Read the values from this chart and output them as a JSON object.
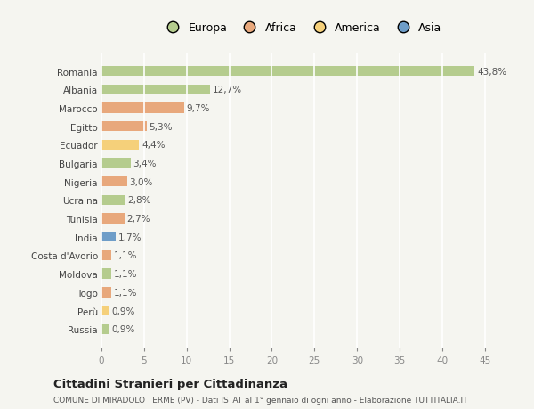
{
  "countries": [
    "Romania",
    "Albania",
    "Marocco",
    "Egitto",
    "Ecuador",
    "Bulgaria",
    "Nigeria",
    "Ucraina",
    "Tunisia",
    "India",
    "Costa d'Avorio",
    "Moldova",
    "Togo",
    "Perù",
    "Russia"
  ],
  "values": [
    43.8,
    12.7,
    9.7,
    5.3,
    4.4,
    3.4,
    3.0,
    2.8,
    2.7,
    1.7,
    1.1,
    1.1,
    1.1,
    0.9,
    0.9
  ],
  "labels": [
    "43,8%",
    "12,7%",
    "9,7%",
    "5,3%",
    "4,4%",
    "3,4%",
    "3,0%",
    "2,8%",
    "2,7%",
    "1,7%",
    "1,1%",
    "1,1%",
    "1,1%",
    "0,9%",
    "0,9%"
  ],
  "colors": [
    "#b5cc8e",
    "#b5cc8e",
    "#e8a87c",
    "#e8a87c",
    "#f5d07a",
    "#b5cc8e",
    "#e8a87c",
    "#b5cc8e",
    "#e8a87c",
    "#6e9dc8",
    "#e8a87c",
    "#b5cc8e",
    "#e8a87c",
    "#f5d07a",
    "#b5cc8e"
  ],
  "legend_labels": [
    "Europa",
    "Africa",
    "America",
    "Asia"
  ],
  "legend_colors": [
    "#b5cc8e",
    "#e8a87c",
    "#f5d07a",
    "#6e9dc8"
  ],
  "xlim": [
    0,
    47
  ],
  "xticks": [
    0,
    5,
    10,
    15,
    20,
    25,
    30,
    35,
    40,
    45
  ],
  "title": "Cittadini Stranieri per Cittadinanza",
  "subtitle": "COMUNE DI MIRADOLO TERME (PV) - Dati ISTAT al 1° gennaio di ogni anno - Elaborazione TUTTITALIA.IT",
  "bg_color": "#f5f5f0",
  "bar_height": 0.55,
  "grid_color": "#ffffff",
  "label_fontsize": 7.5,
  "tick_fontsize": 7.5,
  "title_fontsize": 9.5,
  "subtitle_fontsize": 6.5
}
